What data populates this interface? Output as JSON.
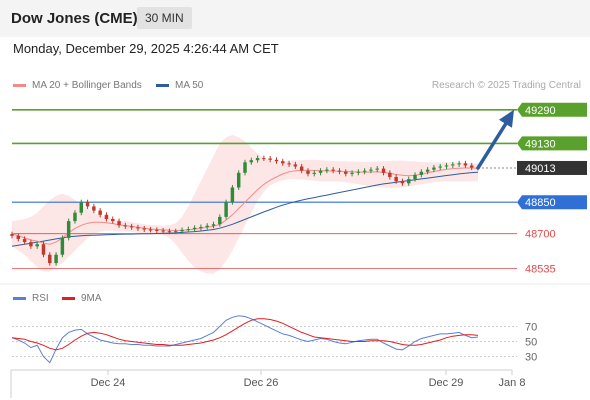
{
  "header": {
    "title": "Dow Jones (CME)",
    "timeframe": "30 MIN",
    "datetime": "Monday, December 29, 2025 4:26:44 AM CET"
  },
  "legend": {
    "ma20": "MA 20 + Bollinger Bands",
    "ma50": "MA 50",
    "credit": "Research © 2025 Trading Central",
    "rsi": "RSI",
    "rsi_ma": "9MA"
  },
  "colors": {
    "ma20": "#f28a8a",
    "ma50": "#2d5d9e",
    "bollinger_fill": "#fde2e2",
    "resistance": "#5aa02c",
    "support": "#e24a4a",
    "pivot": "#2f6fd6",
    "current_price": "#333333",
    "candle_up": "#2e8b3a",
    "candle_down": "#c0392b",
    "rsi": "#5b7fd6",
    "rsi_ma": "#e02020",
    "arrow": "#2d5d9e"
  },
  "chart_data": [
    {
      "type": "line",
      "title": "",
      "x_ticks": [
        "Dec 24",
        "Dec 26",
        "Dec 29",
        "Jan 8"
      ],
      "ylim": [
        48470,
        49370
      ],
      "levels": [
        {
          "name": "resistance-2",
          "value": 49290,
          "label": "49290",
          "kind": "resistance"
        },
        {
          "name": "resistance-1",
          "value": 49130,
          "label": "49130",
          "kind": "resistance"
        },
        {
          "name": "current-price",
          "value": 49013,
          "label": "49013",
          "kind": "current"
        },
        {
          "name": "pivot",
          "value": 48850,
          "label": "48850",
          "kind": "pivot"
        },
        {
          "name": "support-1",
          "value": 48700,
          "label": "48700",
          "kind": "support"
        },
        {
          "name": "support-2",
          "value": 48535,
          "label": "48535",
          "kind": "support"
        }
      ],
      "price_series": [
        48690,
        48675,
        48660,
        48640,
        48650,
        48600,
        48560,
        48600,
        48680,
        48760,
        48800,
        48850,
        48830,
        48810,
        48790,
        48770,
        48760,
        48740,
        48735,
        48730,
        48725,
        48720,
        48718,
        48715,
        48712,
        48710,
        48712,
        48718,
        48722,
        48728,
        48732,
        48738,
        48745,
        48780,
        48850,
        48920,
        48990,
        49040,
        49050,
        49060,
        49058,
        49052,
        49045,
        49035,
        49030,
        49020,
        49000,
        48985,
        48990,
        49000,
        49005,
        49000,
        48995,
        48985,
        48990,
        48995,
        49000,
        49005,
        49010,
        48990,
        48970,
        48950,
        48940,
        48960,
        48980,
        48995,
        49005,
        49015,
        49020,
        49025,
        49030,
        49035,
        49025,
        49015,
        49013
      ],
      "ma20_series": [
        48700,
        48690,
        48680,
        48670,
        48665,
        48655,
        48650,
        48660,
        48680,
        48705,
        48725,
        48740,
        48750,
        48755,
        48755,
        48752,
        48748,
        48742,
        48738,
        48735,
        48730,
        48726,
        48722,
        48720,
        48718,
        48716,
        48715,
        48716,
        48718,
        48722,
        48726,
        48730,
        48735,
        48745,
        48765,
        48790,
        48820,
        48850,
        48880,
        48910,
        48935,
        48955,
        48970,
        48985,
        48995,
        49000,
        49002,
        49002,
        49001,
        49000,
        48999,
        48998,
        48997,
        48996,
        48995,
        48994,
        48993,
        48994,
        48995,
        48992,
        48988,
        48982,
        48978,
        48976,
        48978,
        48983,
        48990,
        48996,
        49002,
        49006,
        49010,
        49012,
        49013,
        49013,
        49012
      ],
      "bb_upper": [
        48760,
        48765,
        48770,
        48780,
        48800,
        48830,
        48860,
        48880,
        48890,
        48880,
        48860,
        48840,
        48820,
        48800,
        48790,
        48780,
        48770,
        48765,
        48760,
        48755,
        48750,
        48745,
        48742,
        48740,
        48738,
        48740,
        48750,
        48780,
        48830,
        48890,
        48950,
        49010,
        49070,
        49130,
        49160,
        49170,
        49160,
        49140,
        49110,
        49080,
        49060,
        49050,
        49045,
        49045,
        49048,
        49050,
        49050,
        49052,
        49052,
        49050,
        49048,
        49046,
        49045,
        49045,
        49044,
        49043,
        49042,
        49042,
        49044,
        49045,
        49046,
        49048,
        49048,
        49046,
        49044,
        49042,
        49040,
        49040,
        49040,
        49040,
        49040,
        49040,
        49038,
        49036,
        49035
      ],
      "bb_lower": [
        48640,
        48620,
        48600,
        48570,
        48540,
        48520,
        48520,
        48540,
        48560,
        48590,
        48620,
        48650,
        48680,
        48700,
        48710,
        48715,
        48715,
        48712,
        48710,
        48708,
        48705,
        48702,
        48700,
        48698,
        48695,
        48680,
        48650,
        48610,
        48570,
        48540,
        48520,
        48510,
        48510,
        48530,
        48570,
        48620,
        48680,
        48740,
        48800,
        48860,
        48900,
        48930,
        48945,
        48955,
        48960,
        48960,
        48958,
        48955,
        48952,
        48950,
        48950,
        48950,
        48948,
        48945,
        48940,
        48935,
        48930,
        48925,
        48922,
        48920,
        48918,
        48918,
        48920,
        48925,
        48930,
        48935,
        48940,
        48945,
        48948,
        48950,
        48950,
        48950,
        48950,
        48950,
        48950
      ],
      "ma50_series": [
        48640,
        48645,
        48650,
        48655,
        48660,
        48665,
        48670,
        48675,
        48680,
        48685,
        48688,
        48690,
        48692,
        48693,
        48694,
        48695,
        48696,
        48697,
        48698,
        48698,
        48699,
        48700,
        48700,
        48701,
        48702,
        48703,
        48704,
        48706,
        48708,
        48710,
        48713,
        48716,
        48720,
        48726,
        48735,
        48745,
        48756,
        48768,
        48780,
        48792,
        48804,
        48815,
        48826,
        48836,
        48845,
        48853,
        48860,
        48866,
        48872,
        48878,
        48884,
        48890,
        48896,
        48902,
        48908,
        48914,
        48920,
        48926,
        48932,
        48937,
        48941,
        48945,
        48949,
        48953,
        48957,
        48961,
        48965,
        48969,
        48973,
        48977,
        48981,
        48985,
        48988,
        48991,
        48993
      ]
    },
    {
      "type": "line",
      "title": "",
      "y_ticks": [
        70,
        50,
        30
      ],
      "ylim": [
        15,
        85
      ],
      "rsi_series": [
        55,
        52,
        48,
        42,
        45,
        30,
        22,
        40,
        55,
        62,
        65,
        66,
        60,
        56,
        52,
        50,
        48,
        47,
        47,
        46,
        46,
        45,
        45,
        44,
        44,
        44,
        46,
        48,
        50,
        52,
        54,
        58,
        62,
        70,
        78,
        82,
        84,
        83,
        80,
        76,
        72,
        68,
        64,
        60,
        58,
        55,
        52,
        50,
        52,
        54,
        53,
        50,
        48,
        47,
        49,
        51,
        52,
        53,
        53,
        48,
        44,
        40,
        39,
        44,
        50,
        54,
        56,
        58,
        60,
        60,
        61,
        62,
        58,
        55,
        56
      ],
      "rsi_ma_series": [
        55,
        54,
        53,
        50,
        48,
        45,
        41,
        39,
        41,
        46,
        52,
        57,
        61,
        62,
        61,
        59,
        56,
        53,
        51,
        50,
        49,
        48,
        47,
        46,
        46,
        45,
        45,
        45,
        46,
        47,
        48,
        50,
        52,
        55,
        59,
        64,
        69,
        74,
        78,
        80,
        80,
        79,
        77,
        74,
        70,
        66,
        62,
        59,
        56,
        55,
        54,
        53,
        52,
        51,
        50,
        50,
        50,
        51,
        51,
        51,
        50,
        48,
        46,
        45,
        45,
        46,
        48,
        50,
        52,
        55,
        57,
        58,
        59,
        59,
        58
      ]
    }
  ]
}
